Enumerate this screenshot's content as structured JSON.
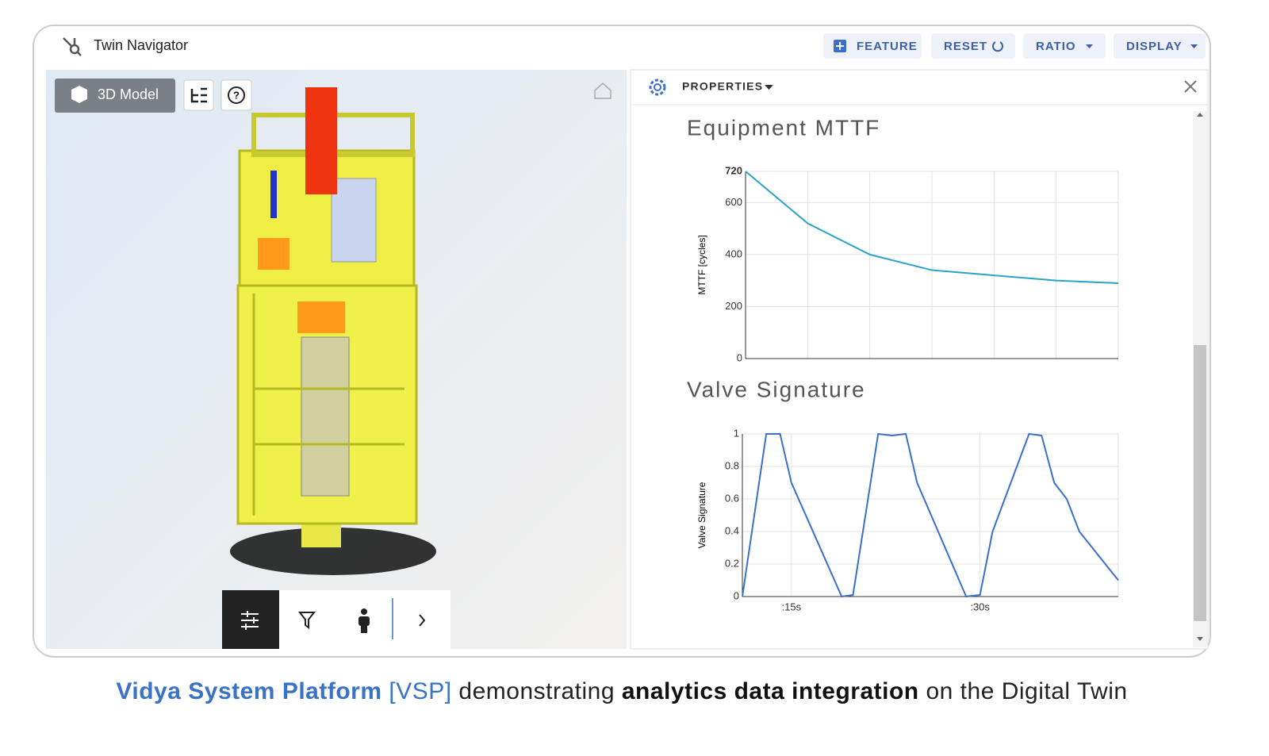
{
  "header": {
    "title": "Twin Navigator",
    "buttons": [
      "FEATURE",
      "RESET",
      "RATIO",
      "DISPLAY"
    ]
  },
  "viewer": {
    "mode_button": "3D Model"
  },
  "panel": {
    "label": "PROPERTIES"
  },
  "chart_data": [
    {
      "type": "line",
      "title": "Equipment MTTF",
      "y_label": "MTTF [cycles]",
      "categories": [
        null,
        null,
        null,
        null,
        null,
        null,
        null
      ],
      "values": [
        720,
        520,
        400,
        340,
        320,
        300,
        290
      ],
      "color": "#2aa3c8",
      "ylim": [
        0,
        720
      ],
      "yticks": [
        0,
        200,
        400,
        600,
        720
      ],
      "grid": true
    },
    {
      "type": "line",
      "title": "Valve Signature",
      "y_label": "Valve Signature",
      "x": [
        11.1,
        13.0,
        14.1,
        15.0,
        19.0,
        19.9,
        21.9,
        23.0,
        24.1,
        25.0,
        28.9,
        30.0,
        31.0,
        33.9,
        34.9,
        35.9,
        36.9,
        37.9,
        41.0
      ],
      "values": [
        0,
        1,
        1,
        0.7,
        0,
        0.01,
        1,
        0.99,
        1,
        0.7,
        0,
        0.01,
        0.4,
        1,
        0.99,
        0.7,
        0.6,
        0.4,
        0.1
      ],
      "color": "#3b6fcb",
      "xlim": [
        11.1,
        41.0
      ],
      "xticks": [
        {
          "value": 15,
          "label": ":15s"
        },
        {
          "value": 30,
          "label": ":30s"
        }
      ],
      "ylim": [
        0,
        1
      ],
      "yticks": [
        0,
        0.2,
        0.4,
        0.6,
        0.8,
        1
      ],
      "grid": true
    }
  ],
  "caption": {
    "brand": "Vidya System Platform",
    "abbr": "[VSP]",
    "text1": "demonstrating",
    "emphasis": "analytics data integration",
    "text2": "on the Digital Twin"
  }
}
